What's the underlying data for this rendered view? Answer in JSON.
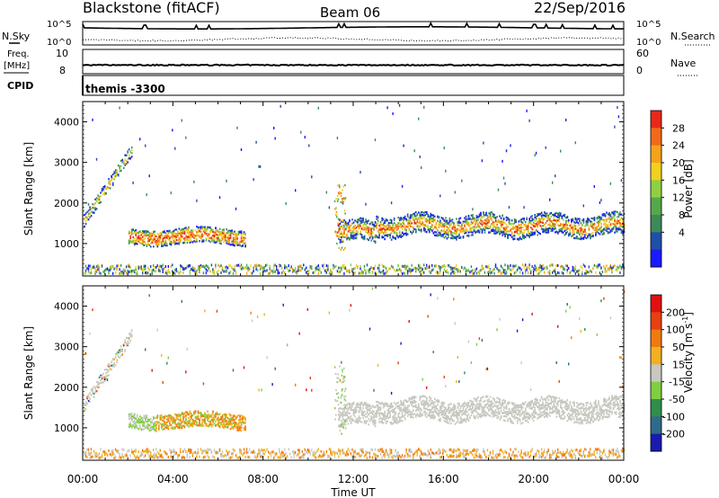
{
  "header": {
    "title": "Blackstone (fitACF)",
    "beam": "Beam 06",
    "date": "22/Sep/2016"
  },
  "top_panels": {
    "nsky_label": "N.Sky",
    "nsearch_label": "N.Search",
    "count_ticks_left": [
      "10^5",
      "10^0"
    ],
    "count_ticks_right": [
      "10^5",
      "10^0"
    ],
    "freq_label_line1": "Freq.",
    "freq_label_line2": "[MHz]",
    "freq_ticks": [
      "10",
      "8"
    ],
    "nave_label": "Nave",
    "nave_ticks": [
      "60",
      "0"
    ],
    "cpid_label": "CPID",
    "cpid_value": "themis -3300"
  },
  "chart_data": [
    {
      "type": "heatmap",
      "name": "power",
      "ylabel": "Slant Range [km]",
      "ylim": [
        200,
        4500
      ],
      "yticks": [
        1000,
        2000,
        3000,
        4000
      ],
      "xlim_hours": [
        0,
        24
      ],
      "colorbar": {
        "label": "Power [dB]",
        "ticks": [
          "28",
          "24",
          "20",
          "16",
          "12",
          "8",
          "4"
        ],
        "colors": [
          "#1a1aff",
          "#1f4fa8",
          "#3c8a5a",
          "#55a84a",
          "#8fd040",
          "#f2d020",
          "#f5a21c",
          "#f26a18",
          "#e82818"
        ]
      },
      "features": [
        {
          "label": "band",
          "t_start": 0.0,
          "t_end": 2.0,
          "range_start": 1400,
          "range_end": 3300
        },
        {
          "label": "band",
          "t_start": 2.0,
          "t_end": 7.2,
          "range_start": 1000,
          "range_end": 1300
        },
        {
          "label": "band",
          "t_start": 11.3,
          "t_end": 24.0,
          "range_start": 1100,
          "range_end": 1700
        },
        {
          "label": "ground",
          "t_start": 0.0,
          "t_end": 24.0,
          "range_start": 200,
          "range_end": 400
        }
      ]
    },
    {
      "type": "heatmap",
      "name": "velocity",
      "ylabel": "Slant Range [km]",
      "xlabel": "Time UT",
      "ylim": [
        200,
        4500
      ],
      "yticks": [
        1000,
        2000,
        3000,
        4000
      ],
      "xlim_hours": [
        0,
        24
      ],
      "xticks": [
        "00:00",
        "04:00",
        "08:00",
        "12:00",
        "16:00",
        "20:00",
        "00:00"
      ],
      "colorbar": {
        "label": "Velocity [m s",
        "label_sup": "-1",
        "label_end": "]",
        "ticks": [
          "200",
          "100",
          "50",
          "15",
          "-15",
          "-50",
          "-100",
          "-200"
        ],
        "colors": [
          "#1a1ab0",
          "#2f6a8a",
          "#2e8f4a",
          "#7ed040",
          "#c8c8c0",
          "#f2b020",
          "#f07a10",
          "#e84010",
          "#e01010"
        ]
      }
    }
  ]
}
